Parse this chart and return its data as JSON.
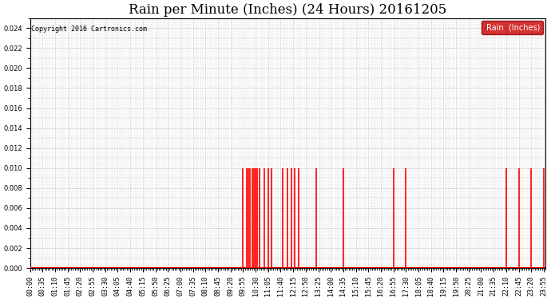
{
  "title": "Rain per Minute (Inches) (24 Hours) 20161205",
  "copyright": "Copyright 2016 Cartronics.com",
  "legend_label": "Rain  (Inches)",
  "ylim": [
    0,
    0.025
  ],
  "yticks": [
    0.0,
    0.002,
    0.004,
    0.006,
    0.008,
    0.01,
    0.012,
    0.014,
    0.016,
    0.018,
    0.02,
    0.022,
    0.024
  ],
  "bar_color": "#ff0000",
  "grid_color": "#c8c8c8",
  "background_color": "#ffffff",
  "legend_bg": "#cc0000",
  "legend_text_color": "#ffffff",
  "title_fontsize": 12,
  "tick_fontsize": 6,
  "rain_events": [
    {
      "time": "09:55",
      "value": 0.01
    },
    {
      "time": "10:05",
      "value": 0.01
    },
    {
      "time": "10:10",
      "value": 0.01
    },
    {
      "time": "10:15",
      "value": 0.01
    },
    {
      "time": "10:20",
      "value": 0.01
    },
    {
      "time": "10:25",
      "value": 0.01
    },
    {
      "time": "10:30",
      "value": 0.01
    },
    {
      "time": "10:35",
      "value": 0.01
    },
    {
      "time": "10:40",
      "value": 0.01
    },
    {
      "time": "10:55",
      "value": 0.01
    },
    {
      "time": "11:05",
      "value": 0.01
    },
    {
      "time": "11:15",
      "value": 0.01
    },
    {
      "time": "11:45",
      "value": 0.01
    },
    {
      "time": "12:00",
      "value": 0.01
    },
    {
      "time": "12:10",
      "value": 0.01
    },
    {
      "time": "12:20",
      "value": 0.01
    },
    {
      "time": "12:30",
      "value": 0.01
    },
    {
      "time": "13:20",
      "value": 0.01
    },
    {
      "time": "14:35",
      "value": 0.01
    },
    {
      "time": "16:55",
      "value": 0.01
    },
    {
      "time": "17:30",
      "value": 0.01
    },
    {
      "time": "22:10",
      "value": 0.01
    },
    {
      "time": "22:45",
      "value": 0.01
    },
    {
      "time": "23:20",
      "value": 0.01
    },
    {
      "time": "23:55",
      "value": 0.01
    }
  ],
  "xtick_times": [
    "00:00",
    "00:35",
    "01:10",
    "01:45",
    "02:20",
    "02:55",
    "03:30",
    "04:05",
    "04:40",
    "05:15",
    "05:50",
    "06:25",
    "07:00",
    "07:35",
    "08:10",
    "08:45",
    "09:20",
    "09:55",
    "10:30",
    "11:05",
    "11:40",
    "12:15",
    "12:50",
    "13:25",
    "14:00",
    "14:35",
    "15:10",
    "15:45",
    "16:20",
    "16:55",
    "17:30",
    "18:05",
    "18:40",
    "19:15",
    "19:50",
    "20:25",
    "21:00",
    "21:35",
    "22:10",
    "22:45",
    "23:20",
    "23:55"
  ]
}
